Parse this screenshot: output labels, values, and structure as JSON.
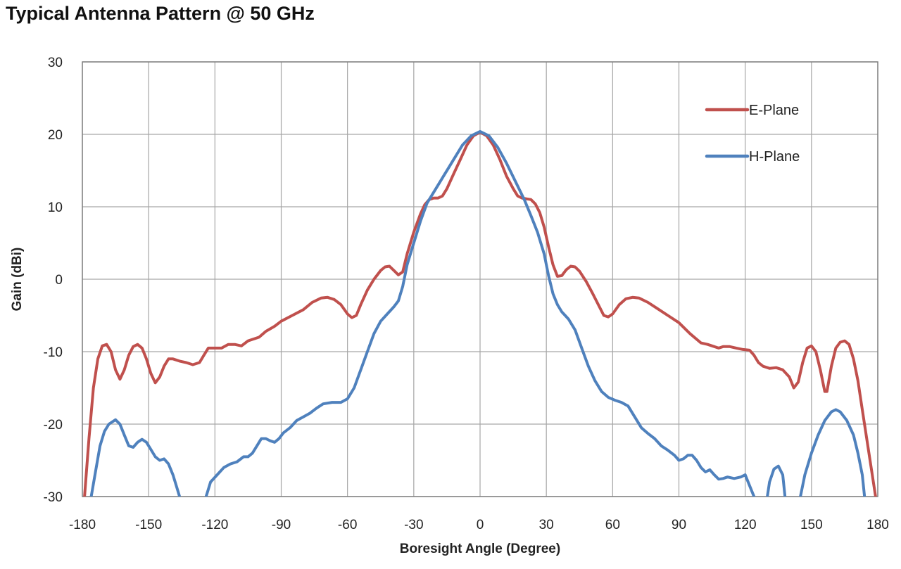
{
  "chart_data": {
    "type": "line",
    "title": "Typical Antenna Pattern @ 50 GHz",
    "xlabel": "Boresight Angle (Degree)",
    "ylabel": "Gain (dBi)",
    "xlim": [
      -180,
      180
    ],
    "ylim": [
      -30,
      30
    ],
    "xticks": [
      -180,
      -150,
      -120,
      -90,
      -60,
      -30,
      0,
      30,
      60,
      90,
      120,
      150,
      180
    ],
    "yticks": [
      -30,
      -20,
      -10,
      0,
      10,
      20,
      30
    ],
    "grid": true,
    "legend_position": "top-right",
    "series": [
      {
        "name": "E-Plane",
        "color": "#c0504d",
        "points": [
          [
            -179,
            -30
          ],
          [
            -177,
            -22
          ],
          [
            -175,
            -15
          ],
          [
            -173,
            -11
          ],
          [
            -171,
            -9.2
          ],
          [
            -169,
            -9
          ],
          [
            -167,
            -10
          ],
          [
            -165,
            -12.5
          ],
          [
            -163,
            -13.8
          ],
          [
            -161,
            -12.5
          ],
          [
            -159,
            -10.5
          ],
          [
            -157,
            -9.3
          ],
          [
            -155,
            -9
          ],
          [
            -153,
            -9.5
          ],
          [
            -151,
            -11
          ],
          [
            -149,
            -13
          ],
          [
            -147,
            -14.3
          ],
          [
            -145,
            -13.5
          ],
          [
            -143,
            -12
          ],
          [
            -141,
            -11
          ],
          [
            -139,
            -11
          ],
          [
            -136,
            -11.3
          ],
          [
            -133,
            -11.5
          ],
          [
            -130,
            -11.8
          ],
          [
            -127,
            -11.5
          ],
          [
            -125,
            -10.5
          ],
          [
            -123,
            -9.5
          ],
          [
            -120,
            -9.5
          ],
          [
            -117,
            -9.5
          ],
          [
            -114,
            -9
          ],
          [
            -111,
            -9
          ],
          [
            -108,
            -9.2
          ],
          [
            -105,
            -8.5
          ],
          [
            -102,
            -8.2
          ],
          [
            -100,
            -8
          ],
          [
            -97,
            -7.2
          ],
          [
            -93,
            -6.5
          ],
          [
            -90,
            -5.8
          ],
          [
            -85,
            -5
          ],
          [
            -80,
            -4.2
          ],
          [
            -76,
            -3.2
          ],
          [
            -72,
            -2.6
          ],
          [
            -69,
            -2.5
          ],
          [
            -66,
            -2.8
          ],
          [
            -63,
            -3.5
          ],
          [
            -60,
            -4.8
          ],
          [
            -58,
            -5.3
          ],
          [
            -56,
            -5
          ],
          [
            -54,
            -3.5
          ],
          [
            -51,
            -1.5
          ],
          [
            -48,
            0
          ],
          [
            -45,
            1.2
          ],
          [
            -43,
            1.7
          ],
          [
            -41,
            1.8
          ],
          [
            -39,
            1.2
          ],
          [
            -37,
            0.6
          ],
          [
            -35,
            1
          ],
          [
            -33,
            3.5
          ],
          [
            -30,
            6.5
          ],
          [
            -27,
            9
          ],
          [
            -25,
            10.3
          ],
          [
            -23,
            11
          ],
          [
            -21,
            11.2
          ],
          [
            -19,
            11.2
          ],
          [
            -17,
            11.5
          ],
          [
            -15,
            12.5
          ],
          [
            -12,
            14.5
          ],
          [
            -9,
            16.5
          ],
          [
            -6,
            18.5
          ],
          [
            -3,
            19.8
          ],
          [
            0,
            20.3
          ],
          [
            3,
            19.8
          ],
          [
            6,
            18.5
          ],
          [
            9,
            16.5
          ],
          [
            12,
            14.2
          ],
          [
            15,
            12.5
          ],
          [
            17,
            11.5
          ],
          [
            19,
            11.2
          ],
          [
            21,
            11.1
          ],
          [
            23,
            11
          ],
          [
            25,
            10.4
          ],
          [
            27,
            9.2
          ],
          [
            29,
            7.2
          ],
          [
            31,
            4.5
          ],
          [
            33,
            2
          ],
          [
            35,
            0.4
          ],
          [
            37,
            0.5
          ],
          [
            39,
            1.3
          ],
          [
            41,
            1.8
          ],
          [
            43,
            1.7
          ],
          [
            45,
            1.1
          ],
          [
            48,
            -0.3
          ],
          [
            51,
            -2
          ],
          [
            54,
            -3.8
          ],
          [
            56,
            -5
          ],
          [
            58,
            -5.2
          ],
          [
            60,
            -4.8
          ],
          [
            63,
            -3.5
          ],
          [
            66,
            -2.7
          ],
          [
            69,
            -2.5
          ],
          [
            72,
            -2.6
          ],
          [
            76,
            -3.2
          ],
          [
            80,
            -4
          ],
          [
            85,
            -5
          ],
          [
            90,
            -6
          ],
          [
            95,
            -7.5
          ],
          [
            100,
            -8.8
          ],
          [
            103,
            -9
          ],
          [
            106,
            -9.3
          ],
          [
            108,
            -9.5
          ],
          [
            110,
            -9.3
          ],
          [
            113,
            -9.3
          ],
          [
            116,
            -9.5
          ],
          [
            119,
            -9.7
          ],
          [
            122,
            -9.8
          ],
          [
            124,
            -10.5
          ],
          [
            126,
            -11.5
          ],
          [
            128,
            -12
          ],
          [
            131,
            -12.3
          ],
          [
            134,
            -12.2
          ],
          [
            137,
            -12.5
          ],
          [
            140,
            -13.5
          ],
          [
            142,
            -15
          ],
          [
            144,
            -14.2
          ],
          [
            146,
            -11.5
          ],
          [
            148,
            -9.5
          ],
          [
            150,
            -9.2
          ],
          [
            152,
            -10
          ],
          [
            154,
            -12.5
          ],
          [
            156,
            -15.5
          ],
          [
            157,
            -15.5
          ],
          [
            159,
            -12
          ],
          [
            161,
            -9.5
          ],
          [
            163,
            -8.7
          ],
          [
            165,
            -8.5
          ],
          [
            167,
            -9
          ],
          [
            169,
            -11
          ],
          [
            171,
            -14
          ],
          [
            173,
            -18
          ],
          [
            175,
            -22
          ],
          [
            177,
            -26
          ],
          [
            179,
            -30
          ]
        ]
      },
      {
        "name": "H-Plane",
        "color": "#4f81bd",
        "points": [
          [
            -176,
            -30
          ],
          [
            -174,
            -26.5
          ],
          [
            -172,
            -23
          ],
          [
            -170,
            -21
          ],
          [
            -168,
            -20
          ],
          [
            -165,
            -19.4
          ],
          [
            -163,
            -20
          ],
          [
            -161,
            -21.5
          ],
          [
            -159,
            -23
          ],
          [
            -157,
            -23.2
          ],
          [
            -155,
            -22.5
          ],
          [
            -153,
            -22.1
          ],
          [
            -151,
            -22.5
          ],
          [
            -149,
            -23.5
          ],
          [
            -147,
            -24.5
          ],
          [
            -145,
            -25
          ],
          [
            -143,
            -24.8
          ],
          [
            -141,
            -25.5
          ],
          [
            -139,
            -27
          ],
          [
            -137,
            -29
          ],
          [
            -136,
            -30
          ],
          null,
          [
            -124,
            -30
          ],
          [
            -122,
            -28
          ],
          [
            -119,
            -27
          ],
          [
            -116,
            -26
          ],
          [
            -113,
            -25.5
          ],
          [
            -110,
            -25.2
          ],
          [
            -107,
            -24.5
          ],
          [
            -105,
            -24.5
          ],
          [
            -103,
            -24
          ],
          [
            -101,
            -23
          ],
          [
            -99,
            -22
          ],
          [
            -97,
            -22
          ],
          [
            -95,
            -22.3
          ],
          [
            -93,
            -22.5
          ],
          [
            -91,
            -22
          ],
          [
            -89,
            -21.2
          ],
          [
            -86,
            -20.5
          ],
          [
            -83,
            -19.5
          ],
          [
            -80,
            -19
          ],
          [
            -77,
            -18.5
          ],
          [
            -74,
            -17.8
          ],
          [
            -71,
            -17.2
          ],
          [
            -67,
            -17
          ],
          [
            -63,
            -17
          ],
          [
            -60,
            -16.5
          ],
          [
            -57,
            -15
          ],
          [
            -54,
            -12.5
          ],
          [
            -51,
            -10
          ],
          [
            -48,
            -7.5
          ],
          [
            -45,
            -5.8
          ],
          [
            -42,
            -4.8
          ],
          [
            -39,
            -3.8
          ],
          [
            -37,
            -3
          ],
          [
            -35,
            -1
          ],
          [
            -33,
            2
          ],
          [
            -30,
            5
          ],
          [
            -27,
            8
          ],
          [
            -24,
            10.5
          ],
          [
            -20,
            12.5
          ],
          [
            -16,
            14.5
          ],
          [
            -12,
            16.5
          ],
          [
            -8,
            18.5
          ],
          [
            -4,
            19.8
          ],
          [
            0,
            20.4
          ],
          [
            4,
            19.8
          ],
          [
            8,
            18.2
          ],
          [
            12,
            16
          ],
          [
            16,
            13.5
          ],
          [
            20,
            11
          ],
          [
            23,
            8.8
          ],
          [
            26,
            6.5
          ],
          [
            29,
            3.5
          ],
          [
            31,
            0.5
          ],
          [
            33,
            -2
          ],
          [
            35,
            -3.5
          ],
          [
            37,
            -4.5
          ],
          [
            40,
            -5.5
          ],
          [
            43,
            -7
          ],
          [
            46,
            -9.5
          ],
          [
            49,
            -12
          ],
          [
            52,
            -14
          ],
          [
            55,
            -15.5
          ],
          [
            58,
            -16.3
          ],
          [
            61,
            -16.7
          ],
          [
            64,
            -17
          ],
          [
            67,
            -17.5
          ],
          [
            70,
            -19
          ],
          [
            73,
            -20.5
          ],
          [
            76,
            -21.3
          ],
          [
            79,
            -22
          ],
          [
            82,
            -23
          ],
          [
            85,
            -23.6
          ],
          [
            88,
            -24.3
          ],
          [
            90,
            -25
          ],
          [
            92,
            -24.8
          ],
          [
            94,
            -24.3
          ],
          [
            96,
            -24.3
          ],
          [
            98,
            -25
          ],
          [
            100,
            -26
          ],
          [
            102,
            -26.6
          ],
          [
            104,
            -26.3
          ],
          [
            106,
            -27
          ],
          [
            108,
            -27.6
          ],
          [
            110,
            -27.5
          ],
          [
            112,
            -27.3
          ],
          [
            115,
            -27.5
          ],
          [
            118,
            -27.3
          ],
          [
            120,
            -27
          ],
          [
            122,
            -28.5
          ],
          [
            124,
            -30
          ],
          null,
          [
            130,
            -30
          ],
          [
            131,
            -28
          ],
          [
            133,
            -26.2
          ],
          [
            135,
            -25.8
          ],
          [
            137,
            -27
          ],
          [
            138,
            -30
          ],
          null,
          [
            145,
            -30
          ],
          [
            147,
            -27
          ],
          [
            150,
            -24
          ],
          [
            153,
            -21.5
          ],
          [
            156,
            -19.5
          ],
          [
            159,
            -18.3
          ],
          [
            161,
            -18
          ],
          [
            163,
            -18.3
          ],
          [
            166,
            -19.5
          ],
          [
            169,
            -21.5
          ],
          [
            171,
            -24
          ],
          [
            173,
            -27
          ],
          [
            174,
            -30
          ]
        ]
      }
    ]
  }
}
